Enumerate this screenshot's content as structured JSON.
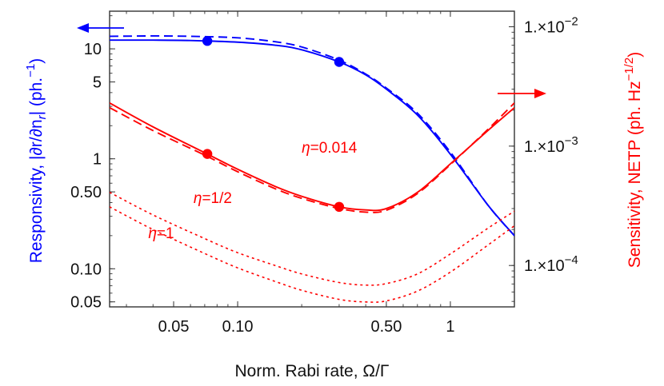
{
  "chart_data": {
    "type": "line",
    "xlabel": "Norm. Rabi rate, Ω/Γ",
    "ylabel_left": "Responsivity, |∂r/∂n",
    "ylabel_left_sub": "r",
    "ylabel_left_tail": "| (ph.",
    "ylabel_left_sup": "−1",
    "ylabel_left_close": ")",
    "ylabel_right": "Sensitivity, NETP (ph. Hz",
    "ylabel_right_sup": "−1/2",
    "ylabel_right_close": ")",
    "x_scale": "log",
    "y_left_scale": "log",
    "y_right_scale": "log",
    "xlim": [
      0.025,
      2.0
    ],
    "ylim_left": [
      0.045,
      22
    ],
    "ylim_right": [
      4.5e-05,
      0.0135
    ],
    "x_ticks": [
      {
        "value": 0.05,
        "label": "0.05"
      },
      {
        "value": 0.1,
        "label": "0.10"
      },
      {
        "value": 0.5,
        "label": "0.50"
      },
      {
        "value": 1,
        "label": "1"
      }
    ],
    "y_left_ticks": [
      {
        "value": 0.05,
        "label": "0.05"
      },
      {
        "value": 0.1,
        "label": "0.10"
      },
      {
        "value": 0.5,
        "label": "0.50"
      },
      {
        "value": 1,
        "label": "1"
      },
      {
        "value": 5,
        "label": "5"
      },
      {
        "value": 10,
        "label": "10"
      }
    ],
    "y_right_ticks": [
      {
        "value": 0.0001,
        "mant": "1.×10",
        "exp": "−4"
      },
      {
        "value": 0.001,
        "mant": "1.×10",
        "exp": "−3"
      },
      {
        "value": 0.01,
        "mant": "1.×10",
        "exp": "−2"
      }
    ],
    "series": [
      {
        "axis": "left",
        "color": "#0000ff",
        "style": "solid",
        "x": [
          0.025,
          0.04,
          0.06,
          0.1,
          0.15,
          0.2,
          0.3,
          0.4,
          0.5,
          0.7,
          1.0,
          1.5,
          2.0
        ],
        "y": [
          12.0,
          12.0,
          11.9,
          11.5,
          10.8,
          9.8,
          7.6,
          5.8,
          4.3,
          2.5,
          1.1,
          0.38,
          0.2
        ]
      },
      {
        "axis": "left",
        "color": "#0000ff",
        "style": "dashed",
        "x": [
          0.025,
          0.04,
          0.06,
          0.1,
          0.15,
          0.2,
          0.3,
          0.4,
          0.5,
          0.7,
          1.0,
          1.5,
          2.0
        ],
        "y": [
          13.0,
          13.1,
          13.0,
          12.6,
          11.6,
          10.4,
          7.9,
          5.9,
          4.4,
          2.6,
          1.15,
          0.38,
          0.2
        ]
      },
      {
        "axis": "right",
        "color": "#ff0000",
        "style": "solid",
        "x": [
          0.025,
          0.04,
          0.07,
          0.1,
          0.15,
          0.2,
          0.3,
          0.4,
          0.5,
          0.7,
          1.0,
          1.5,
          2.0
        ],
        "y": [
          0.0023,
          0.00145,
          0.00088,
          0.00064,
          0.00046,
          0.00038,
          0.00031,
          0.000292,
          0.0003,
          0.00041,
          0.00071,
          0.00135,
          0.0021
        ]
      },
      {
        "axis": "right",
        "color": "#ff0000",
        "style": "dashed",
        "x": [
          0.025,
          0.04,
          0.07,
          0.1,
          0.15,
          0.2,
          0.3,
          0.4,
          0.5,
          0.7,
          1.0,
          1.5,
          2.0
        ],
        "y": [
          0.0021,
          0.00135,
          0.00084,
          0.00061,
          0.00044,
          0.000365,
          0.0003,
          0.00028,
          0.00029,
          0.0004,
          0.0007,
          0.00138,
          0.0023
        ]
      },
      {
        "axis": "right",
        "color": "#ff0000",
        "style": "dotted",
        "x": [
          0.025,
          0.04,
          0.07,
          0.1,
          0.15,
          0.2,
          0.3,
          0.4,
          0.5,
          0.7,
          1.0,
          1.5,
          2.0
        ],
        "y": [
          0.00041,
          0.000265,
          0.000168,
          0.000128,
          0.0001,
          8.5e-05,
          7.2e-05,
          6.85e-05,
          7.05e-05,
          8.5e-05,
          0.000125,
          0.000205,
          0.000285
        ]
      },
      {
        "axis": "right",
        "color": "#ff0000",
        "style": "dotted",
        "x": [
          0.025,
          0.04,
          0.07,
          0.1,
          0.15,
          0.2,
          0.3,
          0.4,
          0.5,
          0.7,
          1.0,
          1.5,
          2.0
        ],
        "y": [
          0.00031,
          0.0002,
          0.000126,
          9.55e-05,
          7.35e-05,
          6.2e-05,
          5.2e-05,
          4.95e-05,
          5.05e-05,
          6.1e-05,
          8.8e-05,
          0.000148,
          0.000215
        ]
      }
    ],
    "markers": [
      {
        "axis": "left",
        "color": "#0000ff",
        "x": 0.072,
        "y": 11.8
      },
      {
        "axis": "left",
        "color": "#0000ff",
        "x": 0.3,
        "y": 7.6
      },
      {
        "axis": "right",
        "color": "#ff0000",
        "x": 0.072,
        "y": 0.00086
      },
      {
        "axis": "right",
        "color": "#ff0000",
        "x": 0.3,
        "y": 0.00031
      }
    ],
    "annotations": [
      {
        "text": "η=0.014",
        "color": "#ff0000",
        "x": 0.2,
        "y": 0.00088,
        "axis": "right"
      },
      {
        "text": "η=1/2",
        "color": "#ff0000",
        "x": 0.062,
        "y": 0.000335,
        "axis": "right"
      },
      {
        "text": "η=1",
        "color": "#ff0000",
        "x": 0.038,
        "y": 0.00017,
        "axis": "right"
      }
    ],
    "axis_colors": {
      "left": "#0000ff",
      "right": "#ff0000",
      "frame": "#333333"
    }
  }
}
